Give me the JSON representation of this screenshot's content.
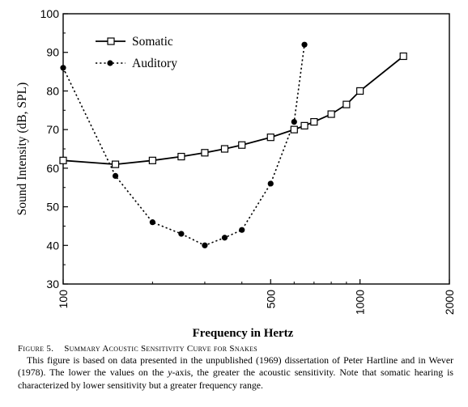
{
  "chart_data": {
    "type": "line",
    "xlabel": "Frequency in Hertz",
    "ylabel": "Sound Intensity (dB, SPL)",
    "x_scale": "log",
    "xlim": [
      100,
      2000
    ],
    "ylim": [
      30,
      100
    ],
    "x_ticks": [
      100,
      500,
      1000,
      2000
    ],
    "y_ticks": [
      30,
      40,
      50,
      60,
      70,
      80,
      90,
      100
    ],
    "grid": false,
    "legend_position": "top-left",
    "series": [
      {
        "name": "Somatic",
        "color": "#000000",
        "line_style": "solid",
        "marker": "open-square",
        "x": [
          100,
          150,
          200,
          250,
          300,
          350,
          400,
          500,
          600,
          650,
          700,
          800,
          900,
          1000,
          1400
        ],
        "y": [
          62,
          61,
          62,
          63,
          64,
          65,
          66,
          68,
          70,
          71,
          72,
          74,
          76.5,
          80,
          89
        ]
      },
      {
        "name": "Auditory",
        "color": "#000000",
        "line_style": "dotted",
        "marker": "filled-circle",
        "x": [
          100,
          150,
          200,
          250,
          300,
          350,
          400,
          500,
          600,
          650
        ],
        "y": [
          86,
          58,
          46,
          43,
          40,
          42,
          44,
          56,
          72,
          92
        ]
      }
    ]
  },
  "caption": {
    "label": "Figure 5.",
    "title": "Summary Acoustic Sensitivity Curve for Snakes",
    "text_before": "This figure is based on data presented in the unpublished (1969) dissertation of Peter Hartline and in Wever (1978). The lower the values on the ",
    "text_italic": "y",
    "text_after": "-axis, the greater the acoustic sensitivity. Note that somatic hearing is characterized by lower sensitivity but a greater frequency range."
  }
}
